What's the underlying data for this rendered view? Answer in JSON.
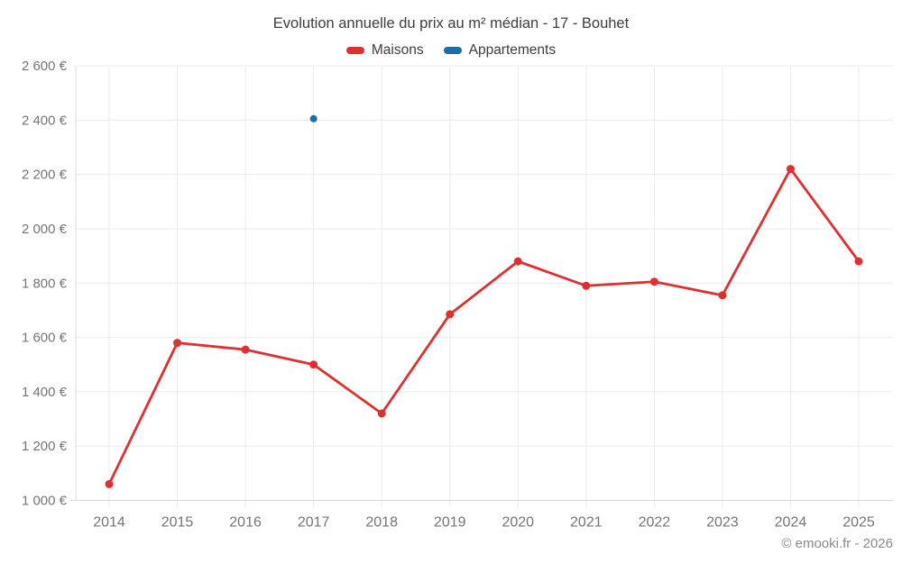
{
  "chart_data": {
    "type": "line",
    "title": "Evolution annuelle du prix au m² médian - 17 - Bouhet",
    "categories": [
      "2014",
      "2015",
      "2016",
      "2017",
      "2018",
      "2019",
      "2020",
      "2021",
      "2022",
      "2023",
      "2024",
      "2025"
    ],
    "series": [
      {
        "name": "Maisons",
        "color": "#e02f2f",
        "marker_radius": 4.5,
        "values": [
          1060,
          1580,
          1555,
          1500,
          1320,
          1685,
          1880,
          1790,
          1805,
          1755,
          2220,
          1880
        ]
      },
      {
        "name": "Appartements",
        "color": "#1c6ea4",
        "marker_radius": 4,
        "values": [
          null,
          null,
          null,
          2405,
          null,
          null,
          null,
          null,
          null,
          null,
          null,
          null
        ]
      }
    ],
    "xlabel": "",
    "ylabel": "",
    "ylim": [
      1000,
      2600
    ],
    "y_ticks": [
      {
        "value": 1000,
        "label": "1 000 €"
      },
      {
        "value": 1200,
        "label": "1 200 €"
      },
      {
        "value": 1400,
        "label": "1 400 €"
      },
      {
        "value": 1600,
        "label": "1 600 €"
      },
      {
        "value": 1800,
        "label": "1 800 €"
      },
      {
        "value": 2000,
        "label": "2 000 €"
      },
      {
        "value": 2200,
        "label": "2 200 €"
      },
      {
        "value": 2400,
        "label": "2 400 €"
      },
      {
        "value": 2600,
        "label": "2 600 €"
      }
    ],
    "grid": true,
    "legend_position": "top",
    "colors": {
      "grid": "#ebebeb",
      "axis": "#d8d8d8",
      "tick_label": "#757575",
      "title": "#3d3d3d",
      "legend_text": "#3d3d3d",
      "footer_text": "#8a8a8a"
    }
  },
  "footer": {
    "credit": "© emooki.fr - 2026"
  }
}
